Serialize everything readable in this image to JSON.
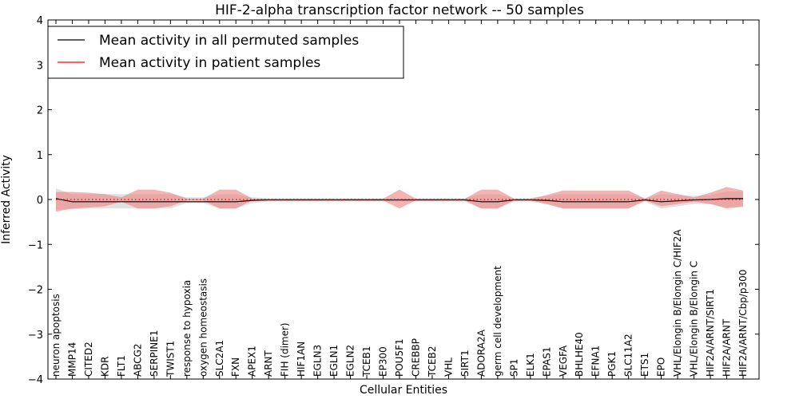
{
  "chart_data": {
    "type": "line",
    "title": "HIF-2-alpha transcription factor network -- 50 samples",
    "xlabel": "Cellular Entities",
    "ylabel": "Inferred Activity",
    "ylim": [
      -4,
      4
    ],
    "yticks": [
      -4,
      -3,
      -2,
      -1,
      0,
      1,
      2,
      3,
      4
    ],
    "grid": false,
    "legend_position": "top-left",
    "colors": {
      "permuted": "#000000",
      "patient": "#ff0000",
      "permuted_band": "#c8c8c8",
      "patient_band": "#f08080"
    },
    "categories": [
      "neuron apoptosis",
      "MMP14",
      "CITED2",
      "KDR",
      "FLT1",
      "ABCG2",
      "SERPINE1",
      "TWIST1",
      "response to hypoxia",
      "oxygen homeostasis",
      "SLC2A1",
      "FXN",
      "APEX1",
      "ARNT",
      "FIH (dimer)",
      "HIF1AN",
      "EGLN3",
      "EGLN1",
      "EGLN2",
      "TCEB1",
      "EP300",
      "POU5F1",
      "CREBBP",
      "TCEB2",
      "VHL",
      "SIRT1",
      "ADORA2A",
      "germ cell development",
      "SP1",
      "ELK1",
      "EPAS1",
      "VEGFA",
      "BHLHE40",
      "EFNA1",
      "PGK1",
      "SLC11A2",
      "ETS1",
      "EPO",
      "VHL/Elongin B/Elongin C/HIF2A",
      "VHL/Elongin B/Elongin C",
      "HIF2A/ARNT/SIRT1",
      "HIF2A/ARNT",
      "HIF2A/ARNT/Cbp/p300"
    ],
    "series": [
      {
        "name": "Mean activity in all permuted samples",
        "color": "#000000",
        "values": [
          0.02,
          -0.05,
          -0.05,
          -0.05,
          -0.05,
          -0.05,
          -0.05,
          -0.05,
          -0.05,
          -0.05,
          -0.05,
          -0.05,
          -0.02,
          -0.01,
          -0.01,
          -0.01,
          -0.01,
          -0.01,
          -0.01,
          -0.01,
          -0.01,
          -0.01,
          -0.01,
          -0.01,
          -0.01,
          -0.01,
          -0.05,
          -0.05,
          -0.01,
          -0.01,
          -0.02,
          -0.05,
          -0.05,
          -0.05,
          -0.05,
          -0.05,
          -0.01,
          -0.05,
          -0.03,
          -0.01,
          0.0,
          0.02,
          0.02
        ],
        "band_lower": [
          -0.22,
          -0.22,
          -0.2,
          -0.2,
          -0.2,
          -0.2,
          -0.2,
          -0.2,
          -0.08,
          -0.08,
          -0.2,
          -0.2,
          -0.08,
          -0.05,
          -0.05,
          -0.05,
          -0.05,
          -0.05,
          -0.05,
          -0.05,
          -0.05,
          -0.05,
          -0.05,
          -0.05,
          -0.05,
          -0.05,
          -0.2,
          -0.2,
          -0.05,
          -0.05,
          -0.1,
          -0.2,
          -0.2,
          -0.2,
          -0.2,
          -0.2,
          -0.05,
          -0.2,
          -0.15,
          -0.1,
          -0.1,
          -0.18,
          -0.18
        ],
        "band_upper": [
          0.25,
          0.12,
          0.12,
          0.12,
          0.12,
          0.12,
          0.12,
          0.12,
          0.05,
          0.05,
          0.12,
          0.12,
          0.05,
          0.03,
          0.03,
          0.03,
          0.03,
          0.03,
          0.03,
          0.03,
          0.03,
          0.03,
          0.03,
          0.03,
          0.03,
          0.03,
          0.12,
          0.12,
          0.03,
          0.03,
          0.08,
          0.12,
          0.12,
          0.12,
          0.12,
          0.12,
          0.03,
          0.12,
          0.1,
          0.08,
          0.1,
          0.18,
          0.18
        ]
      },
      {
        "name": "Mean activity in patient samples",
        "color": "#ff0000",
        "line_style": "dotted",
        "values": [
          0.0,
          0.0,
          0.0,
          0.0,
          0.0,
          0.0,
          0.0,
          0.0,
          0.0,
          0.0,
          0.0,
          0.0,
          0.0,
          0.0,
          0.0,
          0.0,
          0.0,
          0.0,
          0.0,
          0.0,
          0.0,
          0.0,
          0.0,
          0.0,
          0.0,
          0.0,
          0.0,
          0.0,
          0.0,
          0.0,
          0.0,
          0.0,
          0.0,
          0.0,
          0.0,
          0.0,
          0.0,
          0.0,
          0.0,
          0.0,
          0.0,
          0.0,
          0.0
        ],
        "band_lower": [
          -0.27,
          -0.2,
          -0.18,
          -0.15,
          -0.05,
          -0.2,
          -0.2,
          -0.15,
          -0.02,
          -0.02,
          -0.2,
          -0.2,
          -0.02,
          -0.02,
          -0.02,
          -0.02,
          -0.02,
          -0.02,
          -0.02,
          -0.02,
          -0.02,
          -0.2,
          -0.02,
          -0.02,
          -0.02,
          -0.02,
          -0.2,
          -0.2,
          -0.02,
          -0.02,
          -0.1,
          -0.2,
          -0.2,
          -0.2,
          -0.2,
          -0.2,
          -0.02,
          -0.15,
          -0.1,
          -0.05,
          -0.1,
          -0.2,
          -0.15
        ],
        "band_upper": [
          0.17,
          0.17,
          0.15,
          0.12,
          0.05,
          0.22,
          0.22,
          0.15,
          0.02,
          0.02,
          0.22,
          0.22,
          0.02,
          0.02,
          0.02,
          0.02,
          0.02,
          0.02,
          0.02,
          0.02,
          0.02,
          0.22,
          0.02,
          0.02,
          0.02,
          0.02,
          0.22,
          0.22,
          0.02,
          0.02,
          0.1,
          0.2,
          0.2,
          0.2,
          0.2,
          0.2,
          0.02,
          0.2,
          0.12,
          0.05,
          0.15,
          0.28,
          0.2
        ]
      }
    ]
  }
}
